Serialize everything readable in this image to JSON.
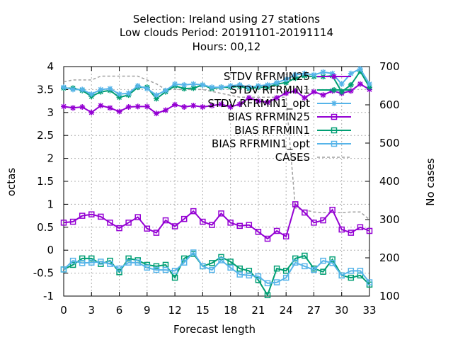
{
  "chart_data": {
    "type": "line",
    "title": [
      "Selection: Ireland using    27 stations",
      "Low clouds   Period: 20191101-20191114",
      "Hours:  00,12"
    ],
    "xlabel": "Forecast length",
    "ylabel": "octas",
    "y2label": "No cases",
    "xlim": [
      0,
      33
    ],
    "ylim": [
      -1,
      4
    ],
    "y2lim": [
      100,
      700
    ],
    "x_ticks": [
      0,
      3,
      6,
      9,
      12,
      15,
      18,
      21,
      24,
      27,
      30,
      33
    ],
    "y_ticks": [
      -1,
      -0.5,
      0,
      0.5,
      1,
      1.5,
      2,
      2.5,
      3,
      3.5,
      4
    ],
    "y_tick_labels": [
      "-1",
      "-0.5",
      "0",
      "0.5",
      "1",
      "1.5",
      "2",
      "2.5",
      "3",
      "3.5",
      "4"
    ],
    "y2_ticks": [
      100,
      200,
      300,
      400,
      500,
      600,
      700
    ],
    "grid": true,
    "legend_position": "top-right",
    "x": [
      0,
      1,
      2,
      3,
      4,
      5,
      6,
      7,
      8,
      9,
      10,
      11,
      12,
      13,
      14,
      15,
      16,
      17,
      18,
      19,
      20,
      21,
      22,
      23,
      24,
      25,
      26,
      27,
      28,
      29,
      30,
      31,
      32,
      33
    ],
    "series": [
      {
        "name": "STDV RFRMIN25",
        "color": "#9400d3",
        "marker": "star",
        "axis": "y1",
        "values": [
          3.13,
          3.1,
          3.12,
          3.0,
          3.15,
          3.1,
          3.02,
          3.12,
          3.13,
          3.13,
          2.98,
          3.05,
          3.17,
          3.12,
          3.15,
          3.12,
          3.15,
          3.18,
          3.12,
          3.18,
          3.32,
          3.25,
          3.22,
          3.32,
          3.42,
          3.47,
          3.32,
          3.45,
          3.38,
          3.47,
          3.42,
          3.47,
          3.62,
          3.5
        ]
      },
      {
        "name": "STDV RFRMIN1",
        "color": "#009e73",
        "marker": "star",
        "axis": "y1",
        "values": [
          3.53,
          3.53,
          3.48,
          3.35,
          3.45,
          3.48,
          3.33,
          3.38,
          3.55,
          3.55,
          3.3,
          3.45,
          3.58,
          3.52,
          3.53,
          3.6,
          3.52,
          3.55,
          3.55,
          3.57,
          3.52,
          3.55,
          3.55,
          3.62,
          3.65,
          3.75,
          3.8,
          3.78,
          3.78,
          3.8,
          3.45,
          3.6,
          3.9,
          3.55
        ]
      },
      {
        "name": "STDV RFRMIN1_opt",
        "color": "#56b4e9",
        "marker": "star",
        "axis": "y1",
        "values": [
          3.55,
          3.5,
          3.5,
          3.4,
          3.5,
          3.52,
          3.4,
          3.42,
          3.58,
          3.52,
          3.38,
          3.48,
          3.62,
          3.6,
          3.62,
          3.6,
          3.55,
          3.55,
          3.58,
          3.6,
          3.55,
          3.58,
          3.6,
          3.65,
          3.72,
          3.82,
          3.85,
          3.82,
          3.88,
          3.85,
          3.62,
          3.85,
          3.95,
          3.62
        ]
      },
      {
        "name": "BIAS RFRMIN25",
        "color": "#9400d3",
        "marker": "square",
        "axis": "y1",
        "values": [
          0.6,
          0.62,
          0.75,
          0.78,
          0.73,
          0.6,
          0.48,
          0.6,
          0.72,
          0.47,
          0.38,
          0.65,
          0.52,
          0.68,
          0.85,
          0.62,
          0.55,
          0.8,
          0.6,
          0.53,
          0.55,
          0.4,
          0.25,
          0.42,
          0.3,
          1.0,
          0.82,
          0.6,
          0.65,
          0.88,
          0.45,
          0.38,
          0.5,
          0.42
        ]
      },
      {
        "name": "BIAS RFRMIN1",
        "color": "#009e73",
        "marker": "square",
        "axis": "y1",
        "values": [
          -0.42,
          -0.32,
          -0.18,
          -0.18,
          -0.3,
          -0.23,
          -0.48,
          -0.18,
          -0.22,
          -0.32,
          -0.35,
          -0.32,
          -0.6,
          -0.18,
          -0.08,
          -0.35,
          -0.28,
          -0.15,
          -0.25,
          -0.4,
          -0.45,
          -0.65,
          -0.98,
          -0.4,
          -0.45,
          -0.18,
          -0.12,
          -0.4,
          -0.47,
          -0.2,
          -0.55,
          -0.6,
          -0.55,
          -0.75
        ]
      },
      {
        "name": "BIAS RFRMIN1_opt",
        "color": "#56b4e9",
        "marker": "square",
        "axis": "y1",
        "values": [
          -0.42,
          -0.23,
          -0.28,
          -0.27,
          -0.25,
          -0.3,
          -0.4,
          -0.27,
          -0.27,
          -0.38,
          -0.43,
          -0.43,
          -0.45,
          -0.27,
          -0.05,
          -0.35,
          -0.43,
          -0.22,
          -0.38,
          -0.53,
          -0.55,
          -0.57,
          -0.72,
          -0.7,
          -0.6,
          -0.27,
          -0.35,
          -0.43,
          -0.23,
          -0.28,
          -0.55,
          -0.45,
          -0.45,
          -0.7
        ]
      },
      {
        "name": "CASES",
        "color": "#a0a0a0",
        "dashed": true,
        "marker": "none",
        "axis": "y2",
        "values": [
          660,
          665,
          665,
          665,
          675,
          675,
          675,
          675,
          675,
          665,
          655,
          640,
          640,
          640,
          640,
          640,
          635,
          630,
          625,
          620,
          620,
          620,
          620,
          620,
          620,
          330,
          325,
          320,
          318,
          318,
          318,
          320,
          320,
          300
        ]
      }
    ]
  }
}
